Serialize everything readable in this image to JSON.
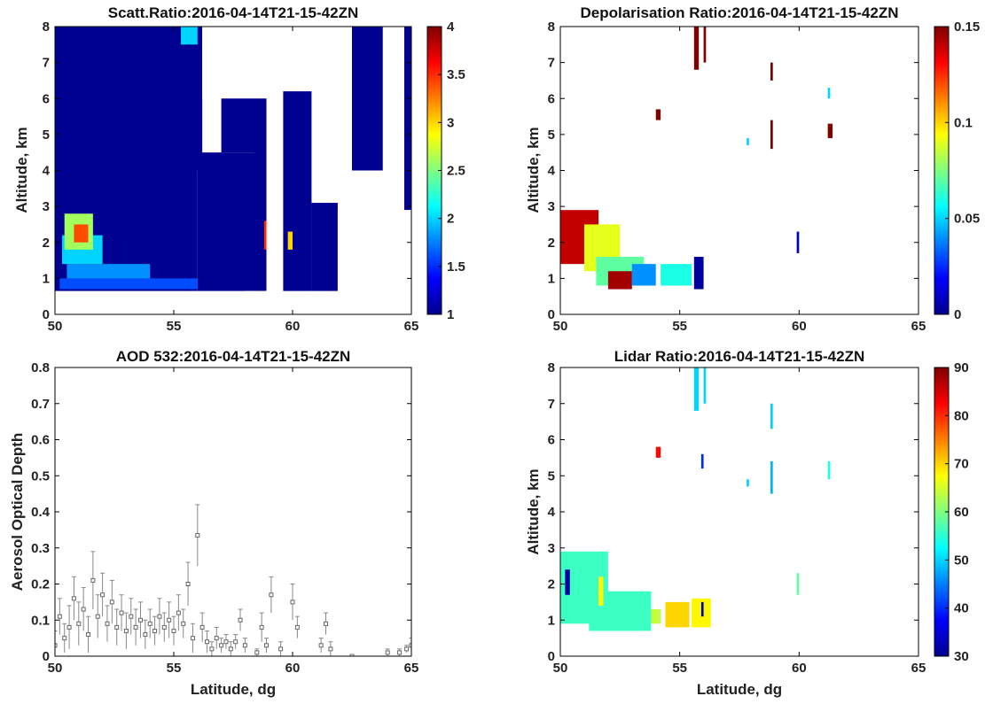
{
  "chart_data": [
    {
      "id": "scatt",
      "type": "heatmap",
      "title": "Scatt.Ratio:2016-04-14T21-15-42ZN",
      "xlabel": "",
      "ylabel": "Altitude, km",
      "xlim": [
        50,
        65
      ],
      "ylim": [
        0,
        8
      ],
      "xticks": [
        "50",
        "55",
        "60",
        "65"
      ],
      "yticks": [
        "0",
        "1",
        "2",
        "3",
        "4",
        "5",
        "6",
        "7",
        "8"
      ],
      "colorbar": {
        "colormap": "jet",
        "range": [
          1,
          4
        ],
        "ticks": [
          "1",
          "1.5",
          "2",
          "2.5",
          "3",
          "3.5",
          "4"
        ]
      },
      "regions": [
        {
          "x": [
            50.0,
            56.0
          ],
          "y": [
            0.65,
            8.0
          ],
          "value": 1.05
        },
        {
          "x": [
            56.0,
            59.0
          ],
          "y": [
            0.65,
            4.5
          ],
          "value": 1.05
        },
        {
          "x": [
            57.0,
            59.0
          ],
          "y": [
            4.5,
            8.0
          ],
          "value": 1.05
        },
        {
          "x": [
            55.8,
            56.2
          ],
          "y": [
            4.0,
            8.0
          ],
          "value": 1.05
        },
        {
          "x": [
            58.4,
            59.2
          ],
          "y": [
            2.8,
            7.5
          ],
          "value": 1.05
        },
        {
          "x": [
            59.6,
            60.8
          ],
          "y": [
            0.65,
            6.2
          ],
          "value": 1.05
        },
        {
          "x": [
            60.8,
            61.9
          ],
          "y": [
            0.65,
            3.1
          ],
          "value": 1.05
        },
        {
          "x": [
            62.5,
            63.8
          ],
          "y": [
            4.0,
            8.0
          ],
          "value": 1.05
        },
        {
          "x": [
            64.7,
            65.0
          ],
          "y": [
            2.9,
            8.0
          ],
          "value": 1.05
        },
        {
          "x": [
            61.0,
            62.3
          ],
          "y": [
            5.5,
            8.0
          ],
          "value": 1.05
        },
        {
          "x": [
            50.2,
            56.0
          ],
          "y": [
            0.7,
            1.0
          ],
          "value": 1.6
        },
        {
          "x": [
            50.5,
            54.0
          ],
          "y": [
            1.0,
            1.4
          ],
          "value": 1.8
        },
        {
          "x": [
            50.3,
            52.0
          ],
          "y": [
            1.4,
            2.2
          ],
          "value": 2.0
        },
        {
          "x": [
            50.4,
            51.6
          ],
          "y": [
            1.8,
            2.8
          ],
          "value": 2.6
        },
        {
          "x": [
            50.8,
            51.4
          ],
          "y": [
            2.0,
            2.5
          ],
          "value": 3.4
        },
        {
          "x": [
            55.3,
            56.0
          ],
          "y": [
            7.5,
            8.0
          ],
          "value": 2.0
        },
        {
          "x": [
            58.8,
            59.0
          ],
          "y": [
            1.8,
            2.6
          ],
          "value": 3.5
        },
        {
          "x": [
            59.8,
            60.0
          ],
          "y": [
            1.8,
            2.3
          ],
          "value": 3.0
        }
      ],
      "whitespaces": [
        {
          "x": [
            56.2,
            59.0
          ],
          "y": [
            6.0,
            8.0
          ]
        },
        {
          "x": [
            58.9,
            59.6
          ],
          "y": [
            0,
            8.0
          ]
        },
        {
          "x": [
            60.8,
            62.5
          ],
          "y": [
            3.2,
            8.0
          ]
        },
        {
          "x": [
            63.8,
            64.7
          ],
          "y": [
            0,
            8.0
          ]
        },
        {
          "x": [
            61.9,
            65.0
          ],
          "y": [
            0,
            2.9
          ]
        },
        {
          "x": [
            58.0,
            58.9
          ],
          "y": [
            0.0,
            0.65
          ]
        }
      ]
    },
    {
      "id": "depol",
      "type": "heatmap",
      "title": "Depolarisation Ratio:2016-04-14T21-15-42ZN",
      "xlabel": "",
      "ylabel": "Altitude, km",
      "xlim": [
        50,
        65
      ],
      "ylim": [
        0,
        8
      ],
      "xticks": [
        "50",
        "55",
        "60",
        "65"
      ],
      "yticks": [
        "0",
        "1",
        "2",
        "3",
        "4",
        "5",
        "6",
        "7",
        "8"
      ],
      "colorbar": {
        "colormap": "jet",
        "range": [
          0,
          0.15
        ],
        "ticks": [
          "0",
          "0.05",
          "0.1",
          "0.15"
        ]
      },
      "regions": [
        {
          "x": [
            50.0,
            51.6
          ],
          "y": [
            1.4,
            2.9
          ],
          "value": 0.14
        },
        {
          "x": [
            51.0,
            52.5
          ],
          "y": [
            1.2,
            2.5
          ],
          "value": 0.09
        },
        {
          "x": [
            51.5,
            53.5
          ],
          "y": [
            0.8,
            1.6
          ],
          "value": 0.07
        },
        {
          "x": [
            52.0,
            53.0
          ],
          "y": [
            0.7,
            1.2
          ],
          "value": 0.145
        },
        {
          "x": [
            53.0,
            54.0
          ],
          "y": [
            0.8,
            1.4
          ],
          "value": 0.04
        },
        {
          "x": [
            54.2,
            55.5
          ],
          "y": [
            0.8,
            1.4
          ],
          "value": 0.06
        },
        {
          "x": [
            55.6,
            56.0
          ],
          "y": [
            0.7,
            1.6
          ],
          "value": 0.005
        },
        {
          "x": [
            55.6,
            55.8
          ],
          "y": [
            6.8,
            8.0
          ],
          "value": 0.15
        },
        {
          "x": [
            56.0,
            56.1
          ],
          "y": [
            7.0,
            8.0
          ],
          "value": 0.15
        },
        {
          "x": [
            58.8,
            58.9
          ],
          "y": [
            4.6,
            5.4
          ],
          "value": 0.15
        },
        {
          "x": [
            58.8,
            58.9
          ],
          "y": [
            6.5,
            7.0
          ],
          "value": 0.15
        },
        {
          "x": [
            61.2,
            61.4
          ],
          "y": [
            4.9,
            5.3
          ],
          "value": 0.15
        },
        {
          "x": [
            54.0,
            54.2
          ],
          "y": [
            5.4,
            5.7
          ],
          "value": 0.15
        },
        {
          "x": [
            59.9,
            60.0
          ],
          "y": [
            1.7,
            2.3
          ],
          "value": 0.01
        },
        {
          "x": [
            61.2,
            61.3
          ],
          "y": [
            6.0,
            6.3
          ],
          "value": 0.05
        },
        {
          "x": [
            57.8,
            57.9
          ],
          "y": [
            4.7,
            4.9
          ],
          "value": 0.05
        }
      ],
      "whitespaces": []
    },
    {
      "id": "aod",
      "type": "scatter",
      "title": "AOD 532:2016-04-14T21-15-42ZN",
      "xlabel": "Latitude, dg",
      "ylabel": "Aerosol Optical Depth",
      "xlim": [
        50,
        65
      ],
      "ylim": [
        0,
        0.8
      ],
      "xticks": [
        "50",
        "55",
        "60",
        "65"
      ],
      "yticks": [
        "0",
        "0.1",
        "0.2",
        "0.3",
        "0.4",
        "0.5",
        "0.6",
        "0.7",
        "0.8"
      ],
      "x": [
        50.0,
        50.2,
        50.4,
        50.6,
        50.8,
        51.0,
        51.2,
        51.4,
        51.6,
        51.8,
        52.0,
        52.2,
        52.4,
        52.6,
        52.8,
        53.0,
        53.2,
        53.4,
        53.6,
        53.8,
        54.0,
        54.2,
        54.4,
        54.6,
        54.8,
        55.0,
        55.2,
        55.4,
        55.6,
        55.8,
        56.0,
        56.2,
        56.4,
        56.6,
        56.8,
        57.0,
        57.2,
        57.4,
        57.6,
        57.8,
        58.0,
        58.5,
        58.7,
        58.9,
        59.1,
        59.5,
        60.0,
        60.2,
        61.2,
        61.4,
        61.6,
        62.5,
        64.0,
        64.5,
        64.8,
        65.0
      ],
      "y": [
        0.03,
        0.11,
        0.05,
        0.08,
        0.16,
        0.09,
        0.13,
        0.06,
        0.21,
        0.11,
        0.17,
        0.09,
        0.15,
        0.08,
        0.12,
        0.07,
        0.11,
        0.08,
        0.1,
        0.06,
        0.09,
        0.07,
        0.11,
        0.08,
        0.1,
        0.07,
        0.12,
        0.09,
        0.2,
        0.05,
        0.335,
        0.08,
        0.04,
        0.02,
        0.05,
        0.03,
        0.04,
        0.02,
        0.04,
        0.1,
        0.03,
        0.01,
        0.08,
        0.03,
        0.17,
        0.02,
        0.15,
        0.08,
        0.03,
        0.09,
        0.02,
        0.0,
        0.01,
        0.01,
        0.02,
        0.03
      ],
      "err": [
        0.04,
        0.05,
        0.04,
        0.06,
        0.06,
        0.06,
        0.06,
        0.05,
        0.08,
        0.06,
        0.06,
        0.05,
        0.06,
        0.05,
        0.05,
        0.05,
        0.05,
        0.05,
        0.05,
        0.04,
        0.04,
        0.04,
        0.05,
        0.04,
        0.05,
        0.04,
        0.05,
        0.04,
        0.06,
        0.04,
        0.085,
        0.04,
        0.03,
        0.02,
        0.03,
        0.02,
        0.02,
        0.02,
        0.02,
        0.03,
        0.02,
        0.01,
        0.04,
        0.02,
        0.05,
        0.02,
        0.05,
        0.03,
        0.02,
        0.03,
        0.02,
        0.0,
        0.01,
        0.01,
        0.01,
        0.02
      ]
    },
    {
      "id": "lidar",
      "type": "heatmap",
      "title": "Lidar Ratio:2016-04-14T21-15-42ZN",
      "xlabel": "Latitude, dg",
      "ylabel": "Altitude, km",
      "xlim": [
        50,
        65
      ],
      "ylim": [
        0,
        8
      ],
      "xticks": [
        "50",
        "55",
        "60",
        "65"
      ],
      "yticks": [
        "0",
        "1",
        "2",
        "3",
        "4",
        "5",
        "6",
        "7",
        "8"
      ],
      "colorbar": {
        "colormap": "jet",
        "range": [
          30,
          90
        ],
        "ticks": [
          "30",
          "40",
          "50",
          "60",
          "70",
          "80",
          "90"
        ]
      },
      "regions": [
        {
          "x": [
            50.0,
            52.0
          ],
          "y": [
            0.9,
            2.9
          ],
          "value": 56
        },
        {
          "x": [
            51.2,
            53.8
          ],
          "y": [
            0.7,
            1.8
          ],
          "value": 56
        },
        {
          "x": [
            50.2,
            50.4
          ],
          "y": [
            1.7,
            2.4
          ],
          "value": 32
        },
        {
          "x": [
            51.6,
            51.8
          ],
          "y": [
            1.4,
            2.2
          ],
          "value": 68
        },
        {
          "x": [
            53.8,
            54.2
          ],
          "y": [
            0.9,
            1.3
          ],
          "value": 64
        },
        {
          "x": [
            54.4,
            55.4
          ],
          "y": [
            0.8,
            1.5
          ],
          "value": 70
        },
        {
          "x": [
            55.5,
            56.3
          ],
          "y": [
            0.8,
            1.6
          ],
          "value": 68
        },
        {
          "x": [
            55.9,
            56.0
          ],
          "y": [
            1.1,
            1.5
          ],
          "value": 34
        },
        {
          "x": [
            55.6,
            55.8
          ],
          "y": [
            6.8,
            8.0
          ],
          "value": 50
        },
        {
          "x": [
            56.0,
            56.1
          ],
          "y": [
            7.0,
            8.0
          ],
          "value": 50
        },
        {
          "x": [
            55.9,
            56.0
          ],
          "y": [
            5.2,
            5.6
          ],
          "value": 40
        },
        {
          "x": [
            58.8,
            58.9
          ],
          "y": [
            4.5,
            5.4
          ],
          "value": 48
        },
        {
          "x": [
            58.8,
            58.9
          ],
          "y": [
            6.3,
            7.0
          ],
          "value": 50
        },
        {
          "x": [
            61.2,
            61.3
          ],
          "y": [
            4.9,
            5.4
          ],
          "value": 54
        },
        {
          "x": [
            54.0,
            54.2
          ],
          "y": [
            5.5,
            5.8
          ],
          "value": 82
        },
        {
          "x": [
            59.9,
            60.0
          ],
          "y": [
            1.7,
            2.3
          ],
          "value": 58
        },
        {
          "x": [
            57.8,
            57.9
          ],
          "y": [
            4.7,
            4.9
          ],
          "value": 50
        }
      ],
      "whitespaces": []
    }
  ]
}
